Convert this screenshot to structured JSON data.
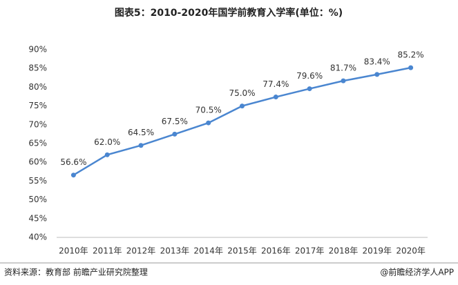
{
  "chart_data": {
    "type": "line",
    "title": "图表5：2010-2020年国学前教育入学率(单位：%)",
    "categories": [
      "2010年",
      "2011年",
      "2012年",
      "2013年",
      "2014年",
      "2015年",
      "2016年",
      "2017年",
      "2018年",
      "2019年",
      "2020年"
    ],
    "values": [
      56.6,
      62.0,
      64.5,
      67.5,
      70.5,
      75.0,
      77.4,
      79.6,
      81.7,
      83.4,
      85.2
    ],
    "value_labels": [
      "56.6%",
      "62.0%",
      "64.5%",
      "67.5%",
      "70.5%",
      "75.0%",
      "77.4%",
      "79.6%",
      "81.7%",
      "83.4%",
      "85.2%"
    ],
    "color": "#4a86d0",
    "ylim": [
      40,
      90
    ],
    "yticks": [
      {
        "value": 40,
        "label": "40%"
      },
      {
        "value": 45,
        "label": "45%"
      },
      {
        "value": 50,
        "label": "50%"
      },
      {
        "value": 55,
        "label": "55%"
      },
      {
        "value": 60,
        "label": "60%"
      },
      {
        "value": 65,
        "label": "65%"
      },
      {
        "value": 70,
        "label": "70%"
      },
      {
        "value": 75,
        "label": "75%"
      },
      {
        "value": 80,
        "label": "80%"
      },
      {
        "value": 85,
        "label": "85%"
      },
      {
        "value": 90,
        "label": "90%"
      }
    ],
    "source": "资料来源：教育部 前瞻产业研究院整理",
    "footer": "@前瞻经济学人APP"
  }
}
